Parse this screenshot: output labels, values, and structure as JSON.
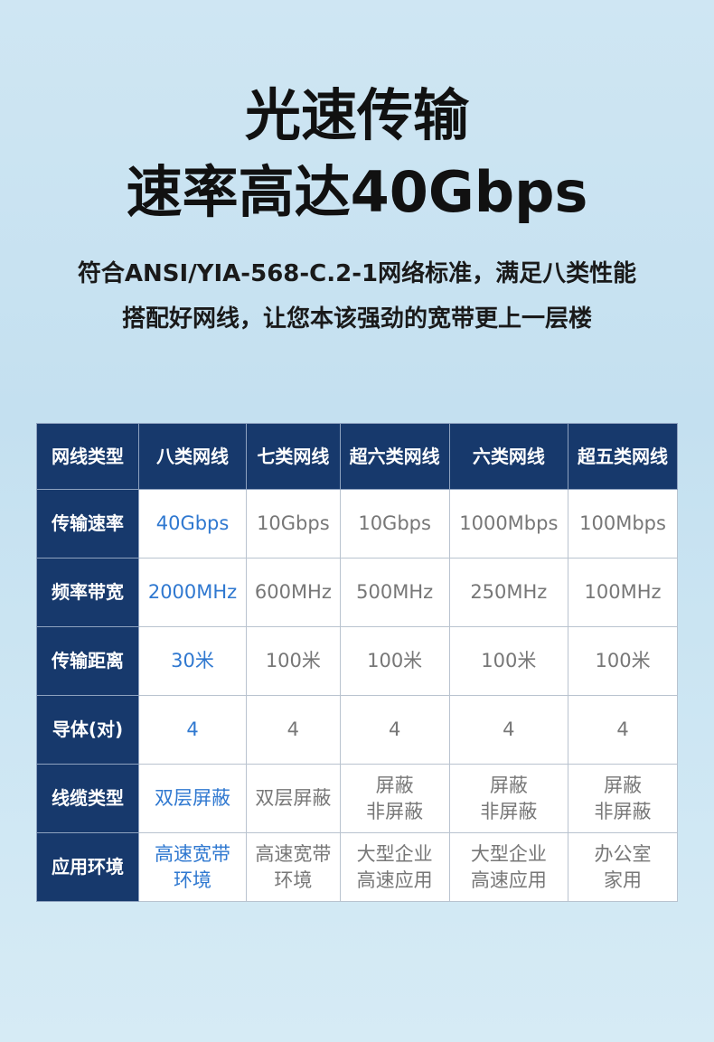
{
  "headline": {
    "line1": "光速传输",
    "line2": "速率高达40Gbps"
  },
  "subtitle": {
    "line1": "符合ANSI/YIA-568-C.2-1网络标准，满足八类性能",
    "line2": "搭配好网线，让您本该强劲的宽带更上一层楼"
  },
  "colors": {
    "header_bg": "#17396c",
    "highlight_text": "#2f78d0",
    "normal_text": "#777777"
  },
  "table": {
    "headers": [
      "网线类型",
      "八类网线",
      "七类网线",
      "超六类网线",
      "六类网线",
      "超五类网线"
    ],
    "rows": [
      {
        "label": "传输速率",
        "cells": [
          "40Gbps",
          "10Gbps",
          "10Gbps",
          "1000Mbps",
          "100Mbps"
        ]
      },
      {
        "label": "频率带宽",
        "cells": [
          "2000MHz",
          "600MHz",
          "500MHz",
          "250MHz",
          "100MHz"
        ]
      },
      {
        "label": "传输距离",
        "cells": [
          "30米",
          "100米",
          "100米",
          "100米",
          "100米"
        ]
      },
      {
        "label": "导体(对)",
        "cells": [
          "4",
          "4",
          "4",
          "4",
          "4"
        ]
      },
      {
        "label": "线缆类型",
        "cells": [
          [
            "双层屏蔽"
          ],
          [
            "双层屏蔽"
          ],
          [
            "屏蔽",
            "非屏蔽"
          ],
          [
            "屏蔽",
            "非屏蔽"
          ],
          [
            "屏蔽",
            "非屏蔽"
          ]
        ]
      },
      {
        "label": "应用环境",
        "cells": [
          [
            "高速宽带",
            "环境"
          ],
          [
            "高速宽带",
            "环境"
          ],
          [
            "大型企业",
            "高速应用"
          ],
          [
            "大型企业",
            "高速应用"
          ],
          [
            "办公室",
            "家用"
          ]
        ]
      }
    ]
  }
}
